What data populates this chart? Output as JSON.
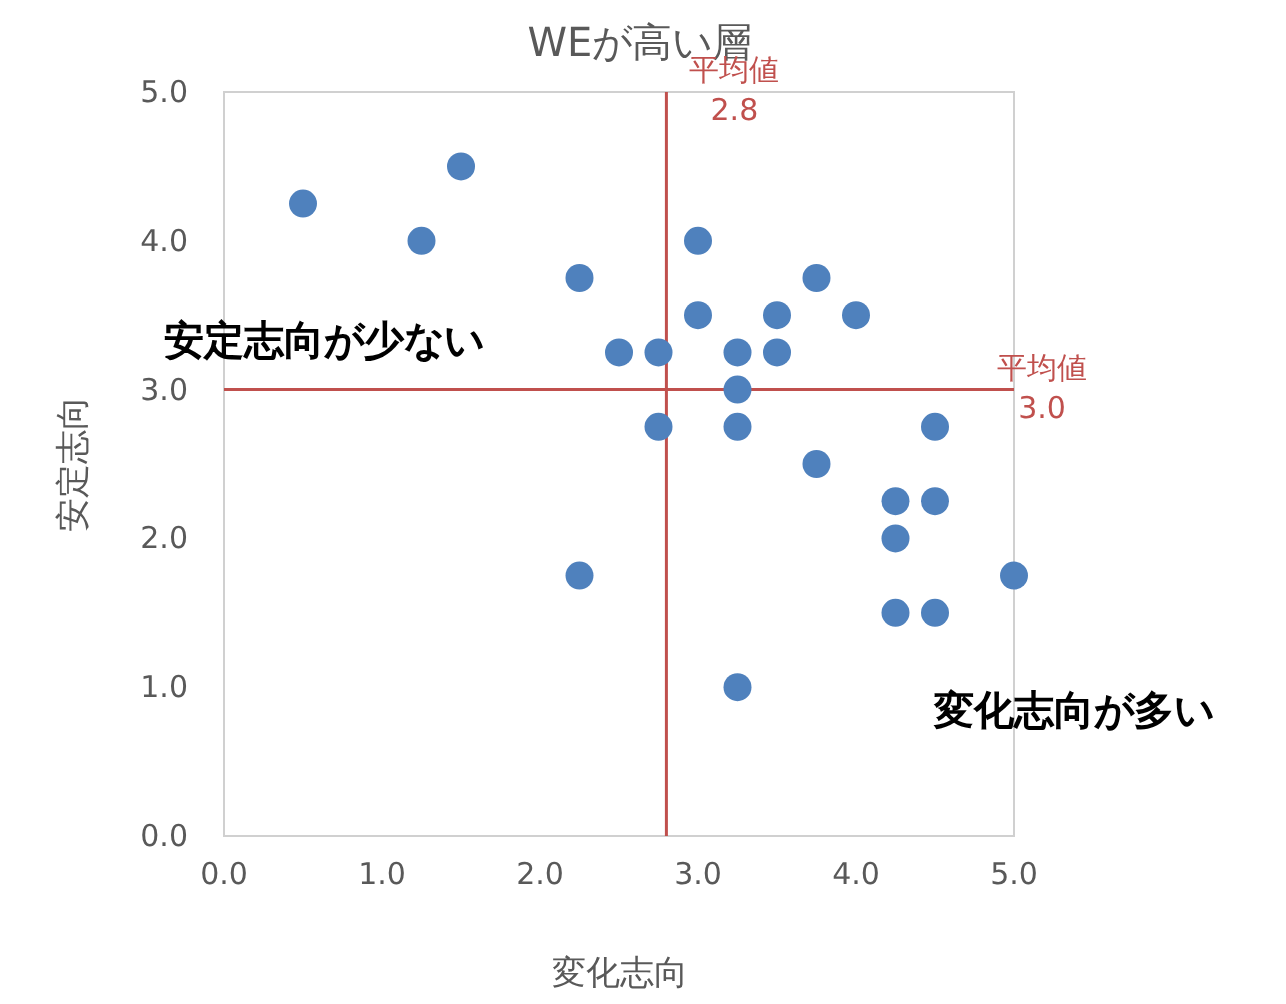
{
  "chart_data": {
    "type": "scatter",
    "title": "WEが高い層",
    "xlabel": "変化志向",
    "ylabel": "安定志向",
    "x": [
      0.5,
      1.25,
      1.5,
      2.25,
      2.25,
      2.5,
      2.75,
      2.75,
      3.0,
      3.0,
      3.25,
      3.25,
      3.25,
      3.25,
      3.5,
      3.5,
      3.75,
      3.75,
      4.0,
      4.25,
      4.25,
      4.25,
      4.5,
      4.5,
      4.5,
      5.0
    ],
    "series": [
      {
        "color": "#4f81bd",
        "values": [
          4.25,
          4.0,
          4.5,
          3.75,
          1.75,
          3.25,
          3.25,
          2.75,
          4.0,
          3.5,
          3.25,
          3.0,
          2.75,
          1.0,
          3.5,
          3.25,
          3.75,
          2.5,
          3.5,
          2.25,
          2.0,
          1.5,
          2.75,
          2.25,
          1.5,
          1.75
        ]
      }
    ],
    "xlim": [
      0,
      5
    ],
    "ylim": [
      0,
      5
    ],
    "xticks": [
      {
        "value": 0,
        "label": "0.0"
      },
      {
        "value": 1,
        "label": "1.0"
      },
      {
        "value": 2,
        "label": "2.0"
      },
      {
        "value": 3,
        "label": "3.0"
      },
      {
        "value": 4,
        "label": "4.0"
      },
      {
        "value": 5,
        "label": "5.0"
      }
    ],
    "yticks": [
      {
        "value": 0,
        "label": "0.0"
      },
      {
        "value": 1,
        "label": "1.0"
      },
      {
        "value": 2,
        "label": "2.0"
      },
      {
        "value": 3,
        "label": "3.0"
      },
      {
        "value": 4,
        "label": "4.0"
      },
      {
        "value": 5,
        "label": "5.0"
      }
    ],
    "ref_lines": [
      {
        "axis": "x",
        "value": 2.8,
        "label": "平均値\n2.8",
        "color": "#c0504d"
      },
      {
        "axis": "y",
        "value": 3.0,
        "label": "平均値\n3.0",
        "color": "#c0504d"
      }
    ],
    "annotations": [
      "安定志向が少ない",
      "変化志向が多い"
    ],
    "marker": "circle",
    "grid": false
  }
}
